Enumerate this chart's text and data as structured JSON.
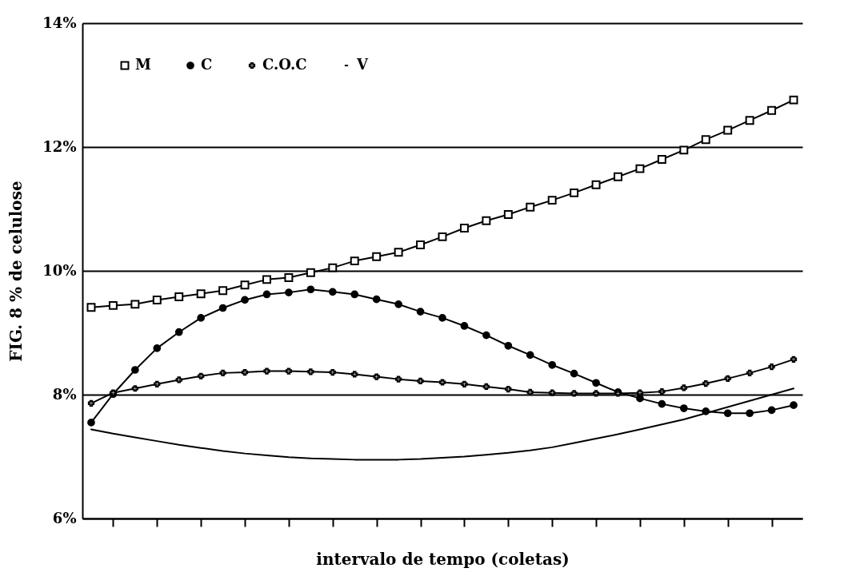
{
  "chart_data": {
    "type": "line",
    "xlabel": "intervalo de tempo (coletas)",
    "ylabel": "FIG. 8 % de celulose",
    "categories": [
      null,
      null,
      null,
      null,
      null,
      null,
      null,
      null,
      null,
      null,
      null,
      null,
      null,
      null,
      null,
      null,
      null,
      null,
      null,
      null,
      null,
      null,
      null,
      null,
      null,
      null,
      null,
      null,
      null,
      null,
      null,
      null,
      null
    ],
    "ylim": [
      6,
      14
    ],
    "yticks": [
      {
        "value": 6,
        "label": "6%"
      },
      {
        "value": 8,
        "label": "8%"
      },
      {
        "value": 10,
        "label": "10%"
      },
      {
        "value": 12,
        "label": "12%"
      },
      {
        "value": 14,
        "label": "14%"
      }
    ],
    "grid": "y",
    "legend": "top left",
    "tick_labels": "y",
    "series": [
      {
        "name": "M",
        "color": "#000000",
        "marker": "square",
        "values": [
          9.41,
          9.44,
          9.46,
          9.53,
          9.58,
          9.63,
          9.68,
          9.77,
          9.86,
          9.89,
          9.97,
          10.05,
          10.16,
          10.23,
          10.3,
          10.42,
          10.55,
          10.69,
          10.81,
          10.91,
          11.03,
          11.14,
          11.26,
          11.39,
          11.52,
          11.65,
          11.8,
          11.95,
          12.12,
          12.27,
          12.43,
          12.59,
          12.76
        ]
      },
      {
        "name": "C",
        "color": "#000000",
        "marker": "circle",
        "values": [
          7.55,
          8.01,
          8.4,
          8.75,
          9.01,
          9.24,
          9.4,
          9.53,
          9.62,
          9.65,
          9.7,
          9.66,
          9.62,
          9.54,
          9.46,
          9.34,
          9.24,
          9.11,
          8.96,
          8.79,
          8.64,
          8.48,
          8.34,
          8.19,
          8.04,
          7.94,
          7.85,
          7.78,
          7.73,
          7.7,
          7.7,
          7.75,
          7.83
        ]
      },
      {
        "name": "C.O.C",
        "color": "#000000",
        "marker": "cross",
        "values": [
          7.86,
          8.03,
          8.1,
          8.17,
          8.24,
          8.3,
          8.35,
          8.36,
          8.38,
          8.38,
          8.37,
          8.36,
          8.33,
          8.29,
          8.25,
          8.22,
          8.2,
          8.17,
          8.13,
          8.09,
          8.04,
          8.03,
          8.02,
          8.02,
          8.02,
          8.03,
          8.05,
          8.11,
          8.18,
          8.26,
          8.35,
          8.45,
          8.57
        ]
      },
      {
        "name": "V",
        "color": "#000000",
        "marker": "none",
        "values": [
          7.44,
          7.37,
          7.31,
          7.25,
          7.19,
          7.14,
          7.09,
          7.05,
          7.02,
          6.99,
          6.97,
          6.96,
          6.95,
          6.95,
          6.95,
          6.96,
          6.98,
          7.0,
          7.03,
          7.06,
          7.1,
          7.15,
          7.22,
          7.29,
          7.36,
          7.44,
          7.52,
          7.6,
          7.7,
          7.8,
          7.9,
          8.0,
          8.1
        ]
      }
    ]
  }
}
